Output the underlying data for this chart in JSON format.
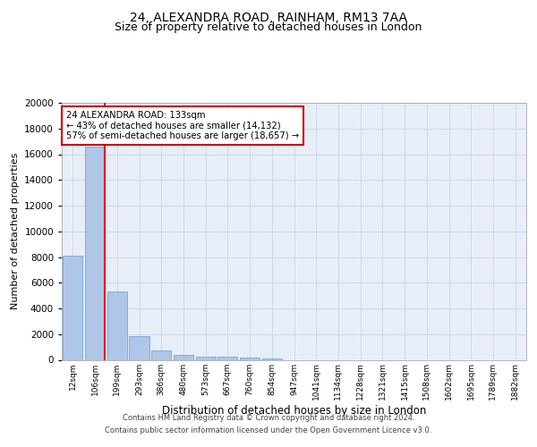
{
  "title_line1": "24, ALEXANDRA ROAD, RAINHAM, RM13 7AA",
  "title_line2": "Size of property relative to detached houses in London",
  "xlabel": "Distribution of detached houses by size in London",
  "ylabel": "Number of detached properties",
  "footer_line1": "Contains HM Land Registry data © Crown copyright and database right 2024.",
  "footer_line2": "Contains public sector information licensed under the Open Government Licence v3.0.",
  "annotation_title": "24 ALEXANDRA ROAD: 133sqm",
  "annotation_line2": "← 43% of detached houses are smaller (14,132)",
  "annotation_line3": "57% of semi-detached houses are larger (18,657) →",
  "property_size_sqm": 133,
  "categories": [
    "12sqm",
    "106sqm",
    "199sqm",
    "293sqm",
    "386sqm",
    "480sqm",
    "573sqm",
    "667sqm",
    "760sqm",
    "854sqm",
    "947sqm",
    "1041sqm",
    "1134sqm",
    "1228sqm",
    "1321sqm",
    "1415sqm",
    "1508sqm",
    "1602sqm",
    "1695sqm",
    "1789sqm",
    "1882sqm"
  ],
  "bar_values": [
    8100,
    16600,
    5300,
    1850,
    700,
    350,
    270,
    220,
    160,
    130,
    0,
    0,
    0,
    0,
    0,
    0,
    0,
    0,
    0,
    0,
    0
  ],
  "bar_color": "#aec6e8",
  "bar_edge_color": "#5a9fd4",
  "highlight_color": "#e8000d",
  "ylim": [
    0,
    20000
  ],
  "yticks": [
    0,
    2000,
    4000,
    6000,
    8000,
    10000,
    12000,
    14000,
    16000,
    18000,
    20000
  ],
  "grid_color": "#c8d4e8",
  "bg_color": "#e8eef8",
  "annotation_box_color": "#cc0000",
  "title_fontsize": 10,
  "subtitle_fontsize": 9
}
